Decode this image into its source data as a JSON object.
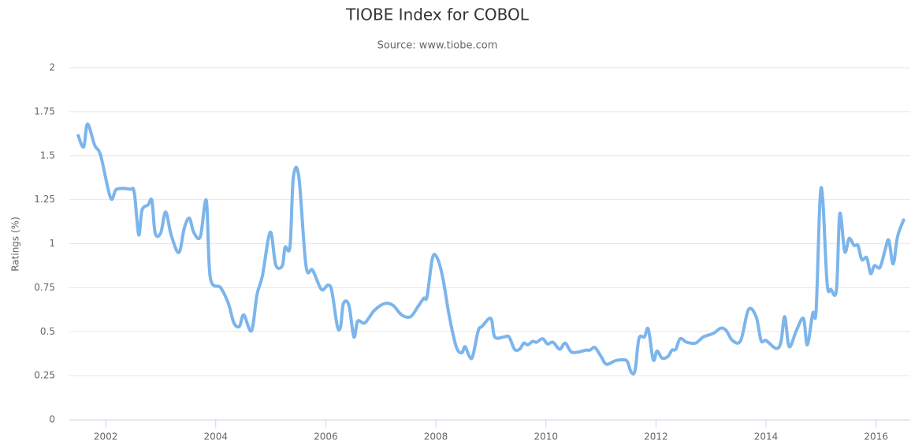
{
  "chart_data": {
    "type": "line",
    "title": "TIOBE Index for COBOL",
    "subtitle": "Source: www.tiobe.com",
    "y_label": "Ratings (%)",
    "xlim": [
      2001.34,
      2016.62
    ],
    "xticks": [
      2002,
      2004,
      2006,
      2008,
      2010,
      2012,
      2014,
      2016
    ],
    "ylim": [
      0,
      2
    ],
    "yticks": [
      0,
      0.25,
      0.5,
      0.75,
      1,
      1.25,
      1.5,
      1.75,
      2
    ],
    "grid": true,
    "x": [
      2001.5,
      2001.6,
      2001.67,
      2001.8,
      2001.91,
      2002.09,
      2002.2,
      2002.44,
      2002.52,
      2002.6,
      2002.66,
      2002.77,
      2002.84,
      2002.9,
      2003.0,
      2003.09,
      2003.19,
      2003.33,
      2003.43,
      2003.52,
      2003.6,
      2003.72,
      2003.83,
      2003.9,
      2004.09,
      2004.23,
      2004.33,
      2004.43,
      2004.51,
      2004.65,
      2004.75,
      2004.85,
      2004.99,
      2005.09,
      2005.21,
      2005.26,
      2005.35,
      2005.41,
      2005.51,
      2005.64,
      2005.76,
      2005.92,
      2006.04,
      2006.11,
      2006.21,
      2006.27,
      2006.32,
      2006.42,
      2006.51,
      2006.58,
      2006.71,
      2006.88,
      2007.07,
      2007.22,
      2007.38,
      2007.54,
      2007.67,
      2007.78,
      2007.84,
      2007.94,
      2008.03,
      2008.13,
      2008.24,
      2008.37,
      2008.47,
      2008.53,
      2008.61,
      2008.67,
      2008.77,
      2008.84,
      2009.0,
      2009.07,
      2009.24,
      2009.33,
      2009.43,
      2009.52,
      2009.6,
      2009.67,
      2009.76,
      2009.83,
      2009.94,
      2010.03,
      2010.13,
      2010.25,
      2010.35,
      2010.46,
      2010.6,
      2010.72,
      2010.8,
      2010.89,
      2011.0,
      2011.1,
      2011.26,
      2011.4,
      2011.48,
      2011.55,
      2011.62,
      2011.69,
      2011.79,
      2011.86,
      2011.95,
      2012.02,
      2012.11,
      2012.22,
      2012.29,
      2012.36,
      2012.44,
      2012.56,
      2012.72,
      2012.86,
      2013.04,
      2013.18,
      2013.28,
      2013.39,
      2013.54,
      2013.68,
      2013.82,
      2013.91,
      2014.0,
      2014.18,
      2014.27,
      2014.34,
      2014.42,
      2014.55,
      2014.68,
      2014.75,
      2014.85,
      2014.91,
      2014.98,
      2015.03,
      2015.11,
      2015.18,
      2015.28,
      2015.34,
      2015.43,
      2015.51,
      2015.6,
      2015.67,
      2015.74,
      2015.83,
      2015.9,
      2015.97,
      2016.07,
      2016.16,
      2016.23,
      2016.31,
      2016.39,
      2016.5
    ],
    "series": [
      {
        "name": "COBOL",
        "color": "#7cb5ec",
        "values": [
          1.615,
          1.55,
          1.68,
          1.56,
          1.5,
          1.26,
          1.31,
          1.31,
          1.29,
          1.05,
          1.19,
          1.22,
          1.245,
          1.06,
          1.06,
          1.18,
          1.05,
          0.95,
          1.09,
          1.145,
          1.065,
          1.04,
          1.245,
          0.81,
          0.75,
          0.66,
          0.55,
          0.53,
          0.595,
          0.505,
          0.71,
          0.82,
          1.065,
          0.88,
          0.875,
          0.98,
          0.985,
          1.375,
          1.38,
          0.875,
          0.85,
          0.74,
          0.765,
          0.73,
          0.53,
          0.53,
          0.66,
          0.65,
          0.47,
          0.56,
          0.55,
          0.62,
          0.66,
          0.65,
          0.595,
          0.585,
          0.64,
          0.69,
          0.7,
          0.92,
          0.915,
          0.8,
          0.595,
          0.415,
          0.38,
          0.415,
          0.36,
          0.36,
          0.505,
          0.53,
          0.575,
          0.47,
          0.47,
          0.47,
          0.4,
          0.4,
          0.435,
          0.425,
          0.445,
          0.44,
          0.46,
          0.43,
          0.44,
          0.4,
          0.435,
          0.385,
          0.385,
          0.395,
          0.395,
          0.41,
          0.36,
          0.315,
          0.335,
          0.34,
          0.33,
          0.27,
          0.28,
          0.46,
          0.47,
          0.515,
          0.34,
          0.39,
          0.35,
          0.36,
          0.395,
          0.4,
          0.46,
          0.44,
          0.435,
          0.47,
          0.49,
          0.52,
          0.505,
          0.45,
          0.45,
          0.625,
          0.585,
          0.45,
          0.45,
          0.405,
          0.44,
          0.585,
          0.415,
          0.505,
          0.575,
          0.425,
          0.605,
          0.62,
          1.245,
          1.255,
          0.775,
          0.74,
          0.74,
          1.17,
          0.955,
          1.03,
          0.99,
          0.99,
          0.91,
          0.92,
          0.83,
          0.875,
          0.865,
          0.96,
          1.02,
          0.885,
          1.04,
          1.135
        ]
      }
    ]
  }
}
